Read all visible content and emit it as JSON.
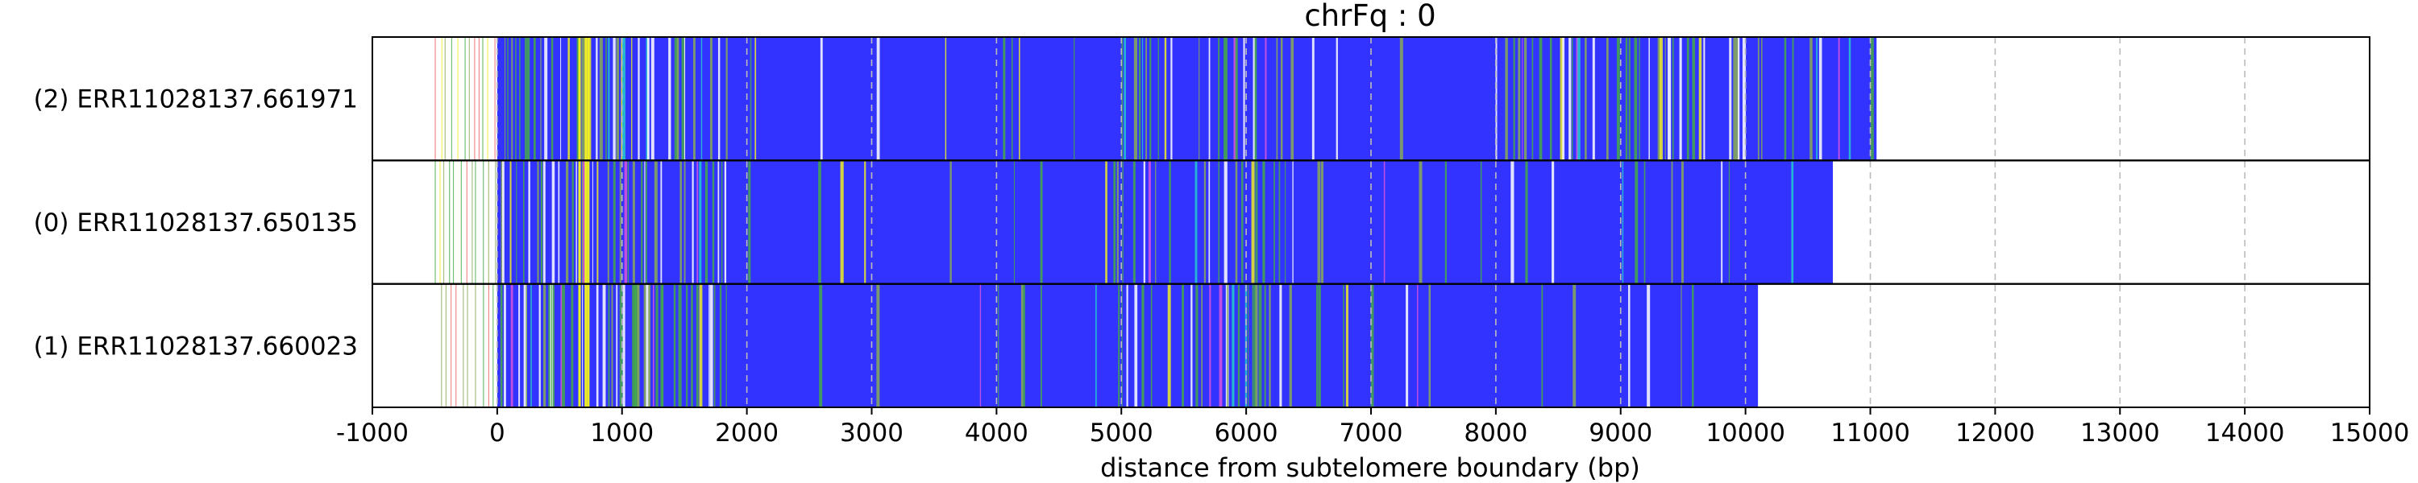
{
  "chart_data": {
    "type": "bar",
    "title": "chrFq : 0",
    "xlabel": "distance from subtelomere boundary (bp)",
    "ylabel": "",
    "xlim": [
      -1000,
      15000
    ],
    "x_ticks": [
      -1000,
      0,
      1000,
      2000,
      3000,
      4000,
      5000,
      6000,
      7000,
      8000,
      9000,
      10000,
      11000,
      12000,
      13000,
      14000,
      15000
    ],
    "grid": "vertical dashed at x ticks",
    "tracks": [
      {
        "label": "(2) ERR11028137.661971",
        "start": -500,
        "end": 11050
      },
      {
        "label": "(0) ERR11028137.650135",
        "start": -500,
        "end": 10700
      },
      {
        "label": "(1) ERR11028137.660023",
        "start": -450,
        "end": 10100
      }
    ],
    "colors": {
      "base": "#3333ff",
      "stripe_green": "#44aa44",
      "stripe_olive": "#88aa55",
      "stripe_yellow": "#eeee22",
      "stripe_white": "#ffffff",
      "stripe_cyan": "#22cccc",
      "stripe_red": "#ee6666",
      "stripe_pink": "#dd55dd",
      "grid": "#bbbbbb",
      "separator": "#000000"
    }
  }
}
